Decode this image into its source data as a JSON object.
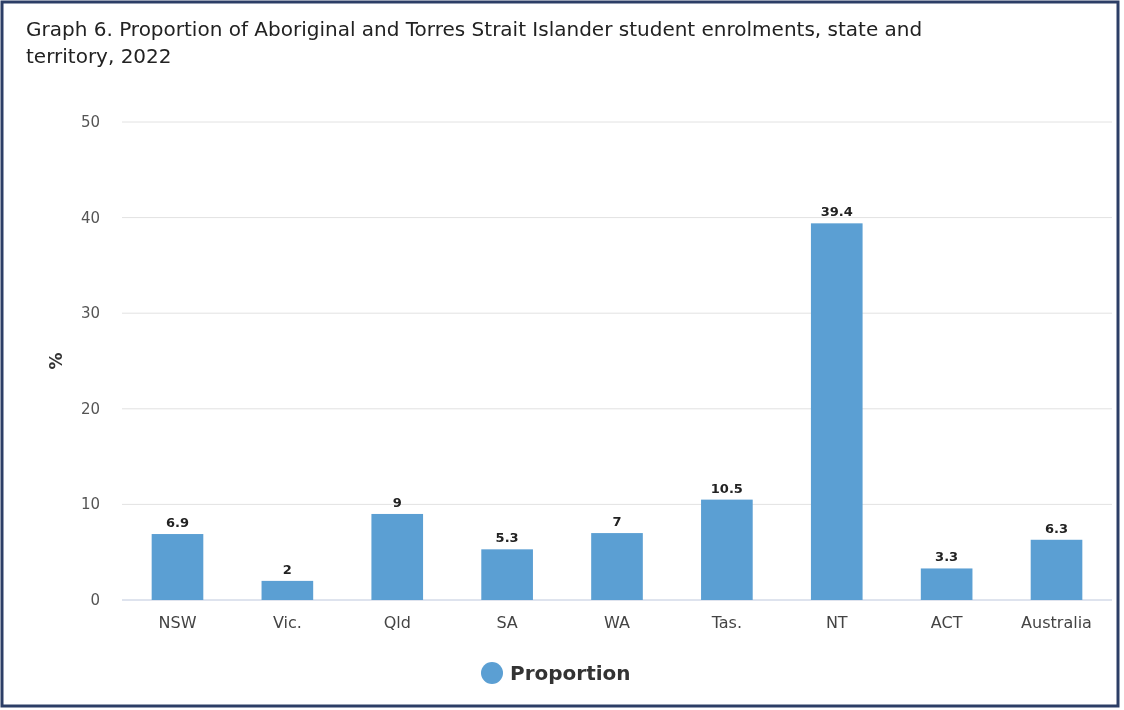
{
  "chart_data": {
    "type": "bar",
    "title": "Graph 6. Proportion of Aboriginal and Torres Strait Islander student enrolments, state and territory, 2022",
    "ylabel": "%",
    "categories": [
      "NSW",
      "Vic.",
      "Qld",
      "SA",
      "WA",
      "Tas.",
      "NT",
      "ACT",
      "Australia"
    ],
    "series": [
      {
        "name": "Proportion",
        "color": "#5b9fd3",
        "values": [
          6.9,
          2,
          9,
          5.3,
          7,
          10.5,
          39.4,
          3.3,
          6.3
        ]
      }
    ],
    "ylim": [
      0,
      50
    ],
    "yticks": [
      0,
      10,
      20,
      30,
      40,
      50
    ],
    "grid": "y",
    "data_labels": true,
    "legend": "bottom"
  }
}
